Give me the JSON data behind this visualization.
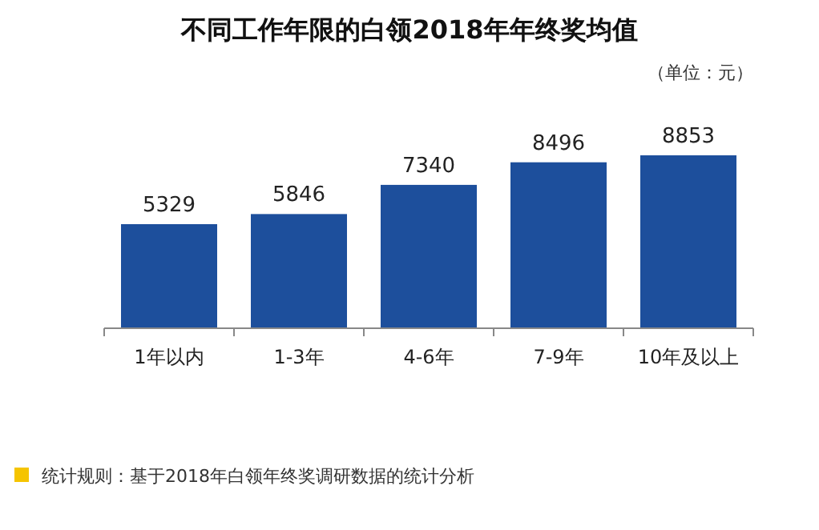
{
  "chart_data": {
    "type": "bar",
    "title": "不同工作年限的白领2018年年终奖均值",
    "categories": [
      "1年以内",
      "1-3年",
      "4-6年",
      "7-9年",
      "10年及以上"
    ],
    "values": [
      5329,
      5846,
      7340,
      8496,
      8853
    ],
    "color": "#1d4f9c",
    "data_labels": true,
    "annotations": [
      "（单位：元）",
      "统计规则：基于2018年白领年终奖调研数据的统计分析"
    ]
  }
}
